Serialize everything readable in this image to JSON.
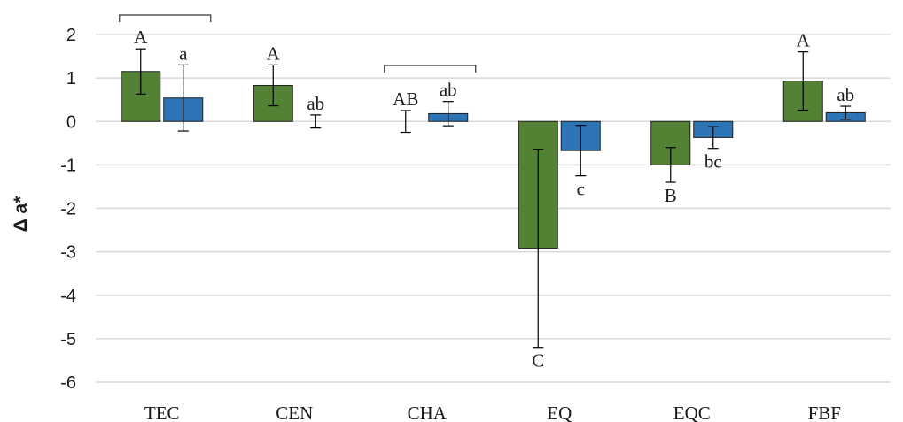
{
  "chart_data": {
    "type": "bar",
    "title": "",
    "xlabel": "",
    "ylabel": "Δ a*",
    "ylim": [
      -6,
      2
    ],
    "yticks": [
      2,
      1,
      0,
      -1,
      -2,
      -3,
      -4,
      -5,
      -6
    ],
    "grid": true,
    "legend": "none",
    "categories": [
      "TEC",
      "CEN",
      "CHA",
      "EQ",
      "EQC",
      "FBF"
    ],
    "series": [
      {
        "color": "#548235",
        "values": [
          1.15,
          0.83,
          0.0,
          -2.92,
          -1.0,
          0.93
        ],
        "errors": [
          0.52,
          0.47,
          0.25,
          2.28,
          0.4,
          0.67
        ],
        "labels": [
          "A",
          "A",
          "AB",
          "C",
          "B",
          "A"
        ]
      },
      {
        "color": "#2e75b6",
        "values": [
          0.54,
          0.0,
          0.18,
          -0.67,
          -0.37,
          0.2
        ],
        "errors": [
          0.76,
          0.15,
          0.28,
          0.58,
          0.25,
          0.15
        ],
        "labels": [
          "a",
          "ab",
          "ab",
          "c",
          "bc",
          "ab"
        ]
      }
    ],
    "brackets": [
      "TEC",
      "CHA"
    ]
  }
}
